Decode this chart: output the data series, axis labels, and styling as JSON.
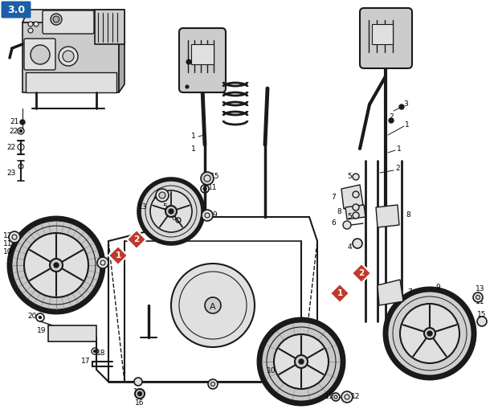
{
  "fig_width": 6.15,
  "fig_height": 5.09,
  "dpi": 100,
  "background_color": "#ffffff",
  "badge_3_bg": "#1a5fa8",
  "badge_3_text": "3.0",
  "badge_1_color": "#c0392b",
  "badge_2_color": "#c0392b",
  "dark": "#1a1a1a",
  "gray1": "#888888",
  "gray2": "#aaaaaa",
  "gray3": "#cccccc",
  "gray4": "#e0e0e0"
}
